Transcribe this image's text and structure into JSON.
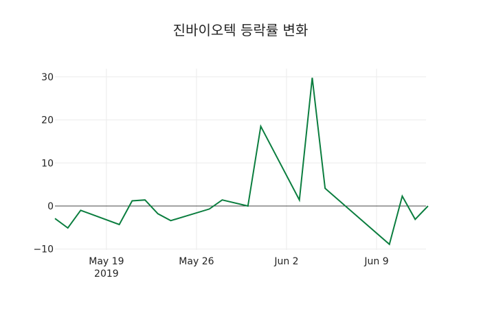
{
  "chart_data": {
    "type": "line",
    "title": "진바이오텍 등락률 변화",
    "xlabel": "",
    "ylabel": "",
    "ylim": [
      -10,
      32
    ],
    "grid": true,
    "legend": false,
    "line_color": "#0a7d3e",
    "x": [
      "2019-05-15",
      "2019-05-16",
      "2019-05-17",
      "2019-05-20",
      "2019-05-21",
      "2019-05-22",
      "2019-05-23",
      "2019-05-24",
      "2019-05-27",
      "2019-05-28",
      "2019-05-30",
      "2019-05-31",
      "2019-06-03",
      "2019-06-04",
      "2019-06-05",
      "2019-06-10",
      "2019-06-11",
      "2019-06-12",
      "2019-06-13"
    ],
    "series": [
      {
        "name": "등락률",
        "values": [
          -2.9,
          -5.1,
          -1.0,
          -4.3,
          1.2,
          1.4,
          -1.8,
          -3.4,
          -0.7,
          1.4,
          0.0,
          18.5,
          1.4,
          29.8,
          4.1,
          -8.9,
          2.3,
          -3.1,
          0.0
        ]
      }
    ],
    "y_ticks": [
      "30",
      "20",
      "10",
      "0",
      "−10"
    ],
    "x_ticks": [
      {
        "label": "May 19",
        "sub": "2019"
      },
      {
        "label": "May 26",
        "sub": ""
      },
      {
        "label": "Jun 2",
        "sub": ""
      },
      {
        "label": "Jun 9",
        "sub": ""
      }
    ]
  }
}
